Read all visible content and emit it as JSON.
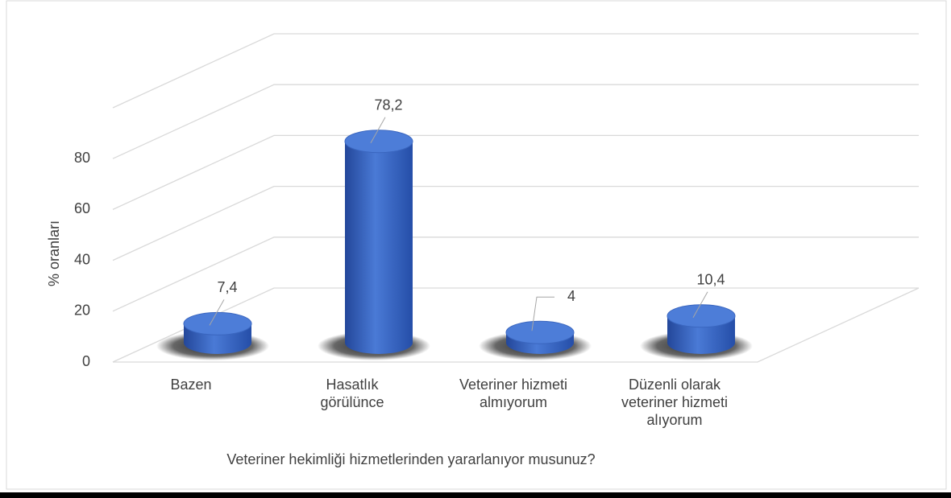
{
  "chart_data": {
    "type": "bar3d",
    "x_label": "Veteriner hekimliği hizmetlerinden yararlanıyor musunuz?",
    "y_label": "% oranları",
    "categories": [
      "Bazen",
      "Hasatlık\ngörülünce",
      "Veteriner hizmeti\nalmıyorum",
      "Düzenli olarak\nveteriner hizmeti\nalıyorum"
    ],
    "values": [
      7.4,
      78.2,
      4,
      10.4
    ],
    "value_labels": [
      "7,4",
      "78,2",
      "4",
      "10,4"
    ],
    "color": "#4472c4",
    "ylim": [
      0,
      100
    ],
    "yticks": [
      0,
      20,
      40,
      60,
      80
    ],
    "grid": true
  }
}
